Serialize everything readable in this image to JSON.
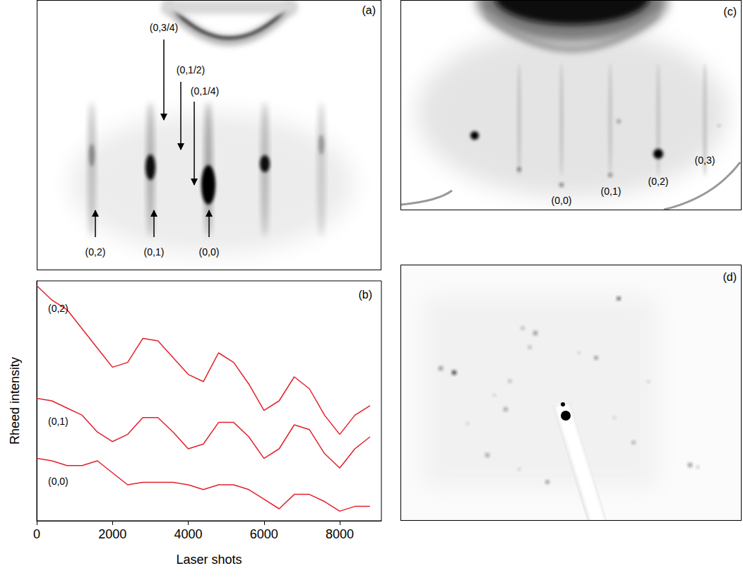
{
  "chart_data": {
    "type": "line",
    "title": "(b)",
    "x_label": "Laser shots",
    "y_label": "Rheed intensity",
    "x": [
      0,
      400,
      800,
      1200,
      1600,
      2000,
      2400,
      2800,
      3200,
      3600,
      4000,
      4400,
      4800,
      5200,
      5600,
      6000,
      6400,
      6800,
      7200,
      7600,
      8000,
      8400,
      8800
    ],
    "xlim": [
      0,
      9100
    ],
    "xticks": [
      0,
      2000,
      4000,
      6000,
      8000
    ],
    "ylim": [
      0,
      100
    ],
    "tick_labels": "x",
    "grid": false,
    "series": [
      {
        "name": "(0,2)",
        "color": "#e4202a",
        "values": [
          98,
          92,
          88,
          80,
          72,
          64,
          66,
          76,
          75,
          68,
          61,
          58,
          70,
          66,
          57,
          46,
          50,
          60,
          55,
          44,
          36,
          44,
          48
        ]
      },
      {
        "name": "(0,1)",
        "color": "#e4202a",
        "values": [
          51,
          50,
          47,
          44,
          37,
          33,
          36,
          43,
          43,
          37,
          30,
          32,
          41,
          41,
          35,
          26,
          30,
          40,
          38,
          28,
          22,
          30,
          35
        ]
      },
      {
        "name": "(0,0)",
        "color": "#e4202a",
        "values": [
          26,
          25,
          23,
          23,
          25,
          20,
          15,
          16,
          16,
          16,
          15,
          13,
          15,
          15,
          13,
          9,
          5,
          11,
          11,
          8,
          4,
          6,
          6
        ]
      }
    ]
  },
  "panels": {
    "a": {
      "letter": "(a)",
      "labels": [
        "(0,3/4)",
        "(0,1/2)",
        "(0,1/4)",
        "(0,2)",
        "(0,1)",
        "(0,0)"
      ]
    },
    "c": {
      "letter": "(c)",
      "labels": [
        "(0,0)",
        "(0,1)",
        "(0,2)",
        "(0,3)"
      ]
    },
    "d": {
      "letter": "(d)"
    }
  }
}
